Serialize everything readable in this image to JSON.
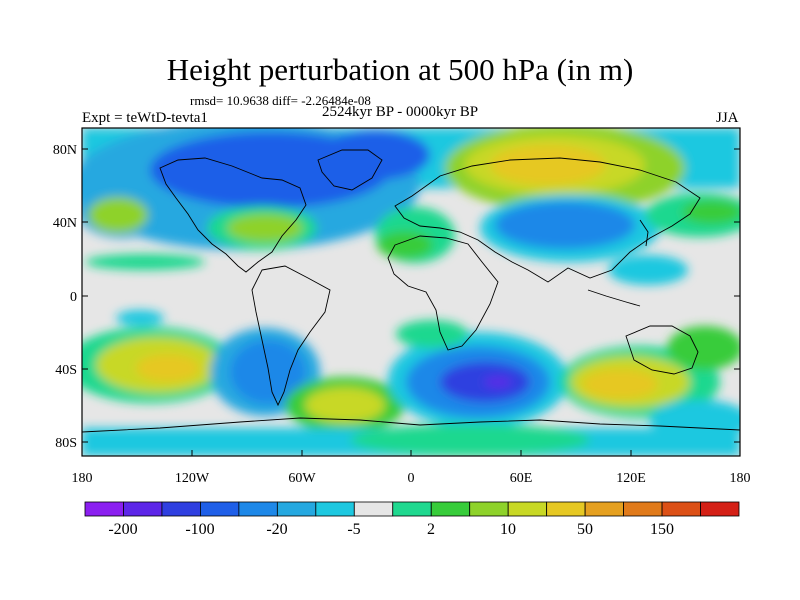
{
  "title": "Height perturbation at 500 hPa (in m)",
  "stats": "rmsd= 10.9638 diff= -2.26484e-08",
  "left_label": "Expt = teWtD-tevta1",
  "center_label": "2524kyr BP - 0000kyr BP",
  "right_label": "JJA",
  "axes": {
    "lat_labels": [
      "80N",
      "40N",
      "0",
      "40S",
      "80S"
    ],
    "lon_labels": [
      "180",
      "120W",
      "60W",
      "0",
      "60E",
      "120E",
      "180"
    ]
  },
  "colorbar": {
    "labels": [
      "-200",
      "-100",
      "-20",
      "-5",
      "2",
      "10",
      "50",
      "150"
    ],
    "colors": [
      "#8b1ff0",
      "#5d26e8",
      "#2f3fe0",
      "#1f5fe8",
      "#1e88e8",
      "#25a8e0",
      "#1ec8e0",
      "#e6e6e6",
      "#1fd88f",
      "#37cc3a",
      "#8ed22a",
      "#c8d825",
      "#e6c823",
      "#e5a020",
      "#e07a1a",
      "#dc5016",
      "#d42016"
    ]
  }
}
